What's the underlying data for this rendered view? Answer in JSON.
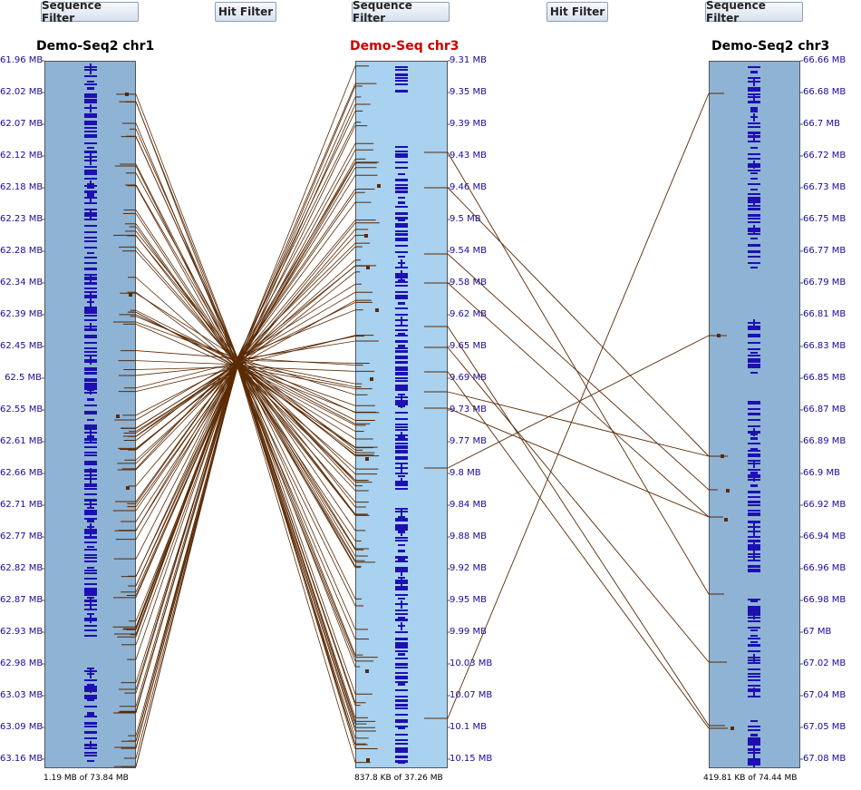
{
  "toolbar": {
    "seq_filter_1": "Sequence Filter",
    "hit_filter_1": "Hit Filter",
    "seq_filter_2": "Sequence Filter",
    "hit_filter_2": "Hit Filter",
    "seq_filter_3": "Sequence Filter"
  },
  "tracks": {
    "left": {
      "title": "Demo-Seq2 chr1",
      "footer": "1.19 MB of 73.84 MB",
      "color": "#8eb3d5",
      "ticks": [
        "61.96 MB",
        "62.02 MB",
        "62.07 MB",
        "62.12 MB",
        "62.18 MB",
        "62.23 MB",
        "62.28 MB",
        "62.34 MB",
        "62.39 MB",
        "62.45 MB",
        "62.5 MB",
        "62.55 MB",
        "62.61 MB",
        "62.66 MB",
        "62.71 MB",
        "62.77 MB",
        "62.82 MB",
        "62.87 MB",
        "62.93 MB",
        "62.98 MB",
        "63.03 MB",
        "63.09 MB",
        "63.16 MB"
      ]
    },
    "middle": {
      "title": "Demo-Seq chr3",
      "footer": "837.8 KB of 37.26 MB",
      "color": "#a8d2f0",
      "ticks": [
        "9.31 MB",
        "9.35 MB",
        "9.39 MB",
        "9.43 MB",
        "9.46 MB",
        "9.5 MB",
        "9.54 MB",
        "9.58 MB",
        "9.62 MB",
        "9.65 MB",
        "9.69 MB",
        "9.73 MB",
        "9.77 MB",
        "9.8 MB",
        "9.84 MB",
        "9.88 MB",
        "9.92 MB",
        "9.95 MB",
        "9.99 MB",
        "10.03 MB",
        "10.07 MB",
        "10.1 MB",
        "10.15 MB"
      ]
    },
    "right": {
      "title": "Demo-Seq2 chr3",
      "footer": "419.81 KB of 74.44 MB",
      "color": "#8eb3d5",
      "ticks": [
        "66.66 MB",
        "66.68 MB",
        "66.7 MB",
        "66.72 MB",
        "66.73 MB",
        "66.75 MB",
        "66.77 MB",
        "66.79 MB",
        "66.81 MB",
        "66.83 MB",
        "66.85 MB",
        "66.87 MB",
        "66.89 MB",
        "66.9 MB",
        "66.92 MB",
        "66.94 MB",
        "66.96 MB",
        "66.98 MB",
        "67 MB",
        "67.02 MB",
        "67.04 MB",
        "67.05 MB",
        "67.08 MB"
      ]
    }
  },
  "colors": {
    "gene": "#1f0fb0",
    "hit": "#5a2a05",
    "tick_text": "#1a0a9e",
    "ref_title": "#cc0000"
  }
}
